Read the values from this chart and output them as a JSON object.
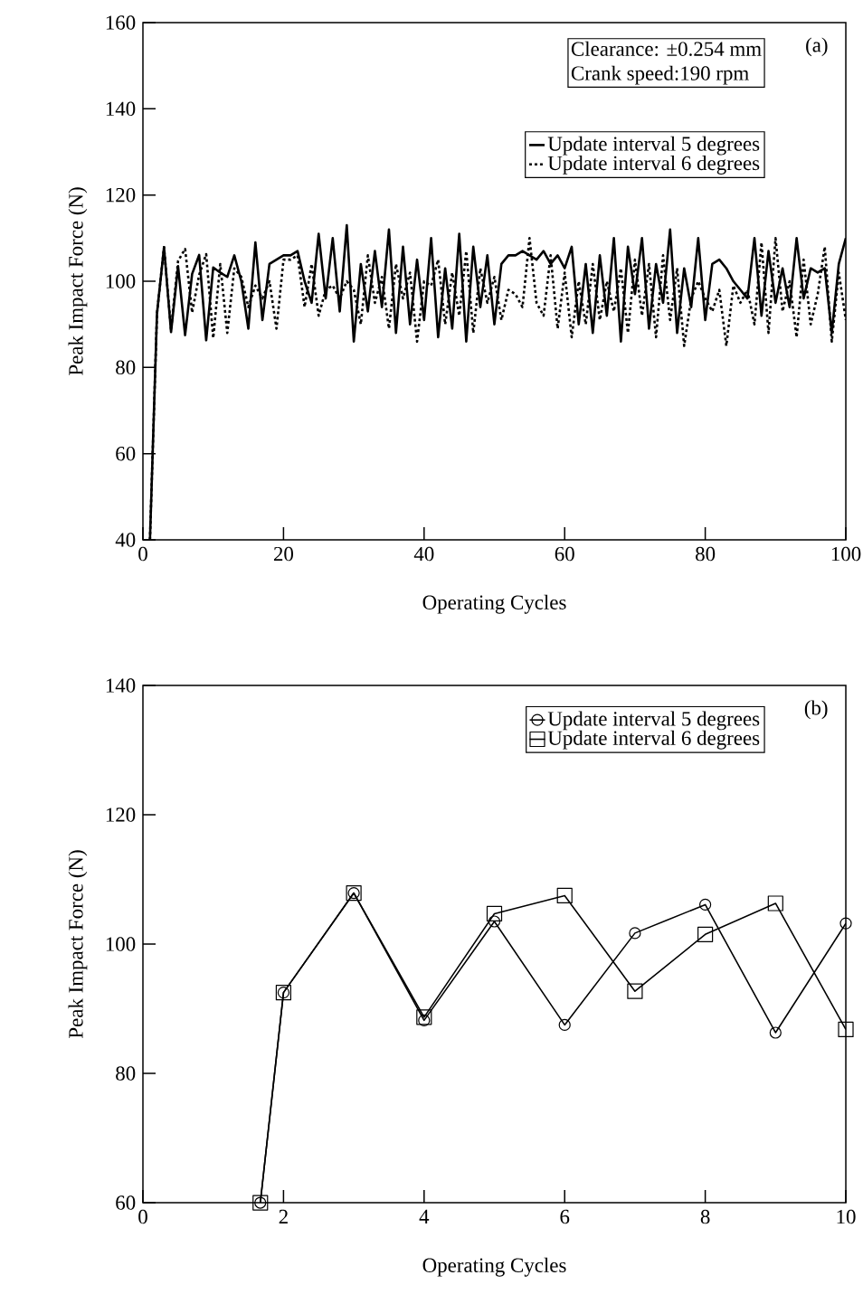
{
  "chart_data": [
    {
      "type": "line",
      "xlabel": "Operating Cycles",
      "ylabel": "Peak Impact Force (N)",
      "annotations": [
        "(a)",
        "Clearance: ±0.254 mm",
        "Crank speed:190 rpm"
      ],
      "x": [
        1,
        2,
        3,
        4,
        5,
        6,
        7,
        8,
        9,
        10,
        11,
        12,
        13,
        14,
        15,
        16,
        17,
        18,
        19,
        20,
        21,
        22,
        23,
        24,
        25,
        26,
        27,
        28,
        29,
        30,
        31,
        32,
        33,
        34,
        35,
        36,
        37,
        38,
        39,
        40,
        41,
        42,
        43,
        44,
        45,
        46,
        47,
        48,
        49,
        50,
        51,
        52,
        53,
        54,
        55,
        56,
        57,
        58,
        59,
        60,
        61,
        62,
        63,
        64,
        65,
        66,
        67,
        68,
        69,
        70,
        71,
        72,
        73,
        74,
        75,
        76,
        77,
        78,
        79,
        80,
        81,
        82,
        83,
        84,
        85,
        86,
        87,
        88,
        89,
        90,
        91,
        92,
        93,
        94,
        95,
        96,
        97,
        98,
        99,
        100
      ],
      "series": [
        {
          "name": "Update interval 5 degrees",
          "color": "#000000",
          "line_style": "solid",
          "values": [
            40,
            92.5,
            107.9,
            88.2,
            103.5,
            87.5,
            101.7,
            106.1,
            86.3,
            103.2,
            102,
            101,
            106,
            100,
            89,
            109,
            91,
            104,
            105,
            106,
            106,
            107,
            100,
            95,
            111,
            96,
            110,
            93,
            113,
            86,
            104,
            93,
            107,
            94,
            112,
            88,
            108,
            90,
            105,
            91,
            110,
            87,
            103,
            89,
            111,
            86,
            108,
            94,
            106,
            90,
            104,
            106,
            106,
            107,
            106,
            105,
            107,
            104,
            106,
            103,
            108,
            90,
            104,
            88,
            106,
            92,
            110,
            86,
            108,
            97,
            110,
            89,
            104,
            95,
            112,
            88,
            103,
            94,
            110,
            91,
            104,
            105,
            103,
            100,
            98,
            96,
            110,
            92,
            107,
            95,
            103,
            94,
            110,
            96,
            103,
            102,
            103,
            88,
            104,
            110
          ]
        },
        {
          "name": "Update interval 6 degrees",
          "color": "#000000",
          "line_style": "dashed",
          "values": [
            40,
            92.5,
            107.9,
            88.7,
            104.7,
            107.5,
            92.7,
            101.5,
            106.3,
            86.8,
            104,
            88,
            103,
            101,
            94,
            99,
            96,
            100,
            89,
            105,
            105,
            106,
            94,
            104,
            92,
            98,
            99,
            96,
            100,
            98,
            90,
            106,
            95,
            101,
            89,
            104,
            96,
            102,
            86,
            100,
            99,
            105,
            90,
            102,
            92,
            107,
            88,
            103,
            95,
            101,
            91,
            98,
            97,
            94,
            110,
            95,
            92,
            106,
            89,
            102,
            87,
            100,
            90,
            104,
            91,
            100,
            93,
            103,
            88,
            105,
            92,
            104,
            87,
            106,
            91,
            103,
            85,
            96,
            100,
            96,
            93,
            98,
            85,
            99,
            95,
            98,
            90,
            109,
            88,
            110,
            93,
            100,
            87,
            105,
            90,
            97,
            108,
            86,
            102,
            91
          ]
        }
      ],
      "xlim": [
        0,
        100
      ],
      "ylim": [
        40,
        160
      ],
      "xticks": [
        0,
        20,
        40,
        60,
        80,
        100
      ],
      "yticks": [
        40,
        60,
        80,
        100,
        120,
        140,
        160
      ],
      "legend": "top right",
      "marker": "none",
      "grid": false
    },
    {
      "type": "line",
      "xlabel": "Operating Cycles",
      "ylabel": "Peak Impact Force (N)",
      "annotations": [
        "(b)"
      ],
      "x": [
        1.67,
        2,
        3,
        4,
        5,
        6,
        7,
        8,
        9,
        10
      ],
      "series": [
        {
          "name": "Update interval 5 degrees",
          "color": "#000000",
          "marker": "circle",
          "line_style": "solid",
          "values": [
            60,
            92.5,
            107.9,
            88.2,
            103.5,
            87.5,
            101.7,
            106.1,
            86.3,
            103.2
          ]
        },
        {
          "name": "Update interval 6 degrees",
          "color": "#000000",
          "marker": "square",
          "line_style": "solid",
          "values": [
            60,
            92.5,
            107.9,
            88.7,
            104.7,
            107.5,
            92.7,
            101.5,
            106.3,
            86.8
          ]
        }
      ],
      "xlim": [
        0,
        10
      ],
      "ylim": [
        60,
        140
      ],
      "xticks": [
        0,
        2,
        4,
        6,
        8,
        10
      ],
      "yticks": [
        60,
        80,
        100,
        120,
        140
      ],
      "legend": "top right",
      "grid": false
    }
  ]
}
